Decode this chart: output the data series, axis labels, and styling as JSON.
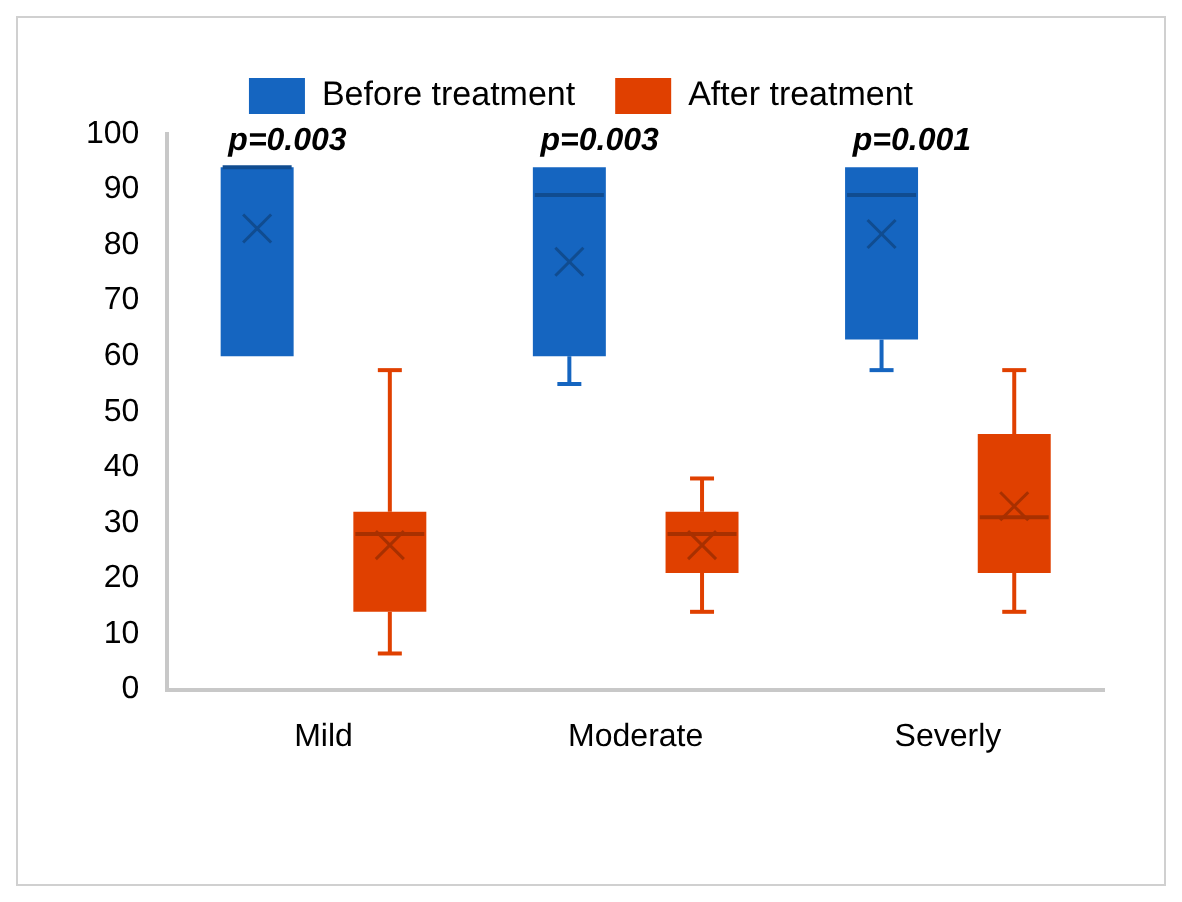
{
  "chart_data": {
    "type": "box",
    "categories": [
      "Mild",
      "Moderate",
      "Severly"
    ],
    "legend": "top",
    "grid": false,
    "ylim": [
      0,
      100
    ],
    "yticks": [
      0,
      10,
      20,
      30,
      40,
      50,
      60,
      70,
      80,
      90,
      100
    ],
    "annotations": [
      "p=0.003",
      "p=0.003",
      "p=0.001"
    ],
    "series": [
      {
        "name": "Before treatment",
        "color": "#1565c0",
        "boxes": [
          {
            "low": 60,
            "q1": 60,
            "median": 94,
            "q3": 94,
            "high": 94,
            "mean": 83
          },
          {
            "low": 55,
            "q1": 60,
            "median": 89,
            "q3": 94,
            "high": 94,
            "mean": 77
          },
          {
            "low": 57.5,
            "q1": 63,
            "median": 89,
            "q3": 94,
            "high": 94,
            "mean": 82
          }
        ]
      },
      {
        "name": "After treatment",
        "color": "#e04000",
        "boxes": [
          {
            "low": 6.5,
            "q1": 14,
            "median": 28,
            "q3": 32,
            "high": 57.5,
            "mean": 26
          },
          {
            "low": 14,
            "q1": 21,
            "median": 28,
            "q3": 32,
            "high": 38,
            "mean": 26
          },
          {
            "low": 14,
            "q1": 21,
            "median": 31,
            "q3": 46,
            "high": 57.5,
            "mean": 33
          }
        ]
      }
    ]
  }
}
